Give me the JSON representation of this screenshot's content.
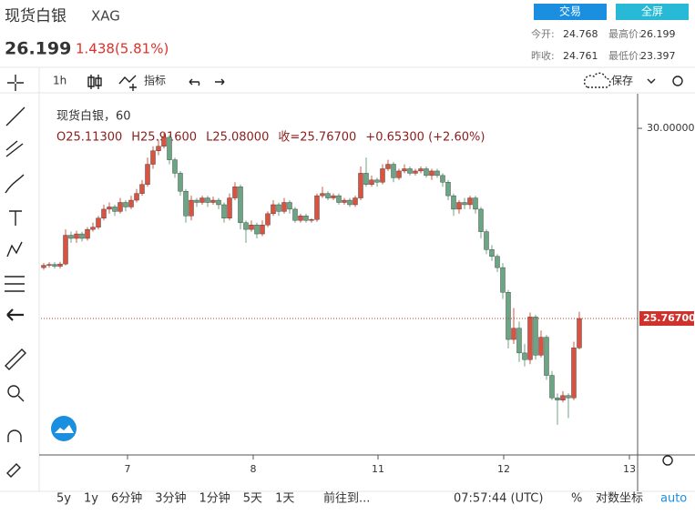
{
  "header": {
    "title": "现货白银",
    "symbol": "XAG",
    "price": "26.199",
    "change": "1.438(5.81%)",
    "buttons": [
      "交易",
      "全屏"
    ],
    "stats": [
      [
        "今开:",
        "24.768"
      ],
      [
        "最高价:",
        "26.199"
      ],
      [
        "昨收:",
        "24.761"
      ],
      [
        "最低价:",
        "23.397"
      ]
    ]
  },
  "toolbar": {
    "interval": "1h",
    "indicators": "指标",
    "save": "保存"
  },
  "bottom_bar": {
    "ranges": [
      "5y",
      "1y",
      "6分钟",
      "3分钟",
      "1分钟",
      "5天",
      "1天"
    ],
    "goto": "前往到...",
    "time": "07:57:44 (UTC)",
    "percent": "%",
    "log": "对数坐标",
    "auto": "auto"
  },
  "chart_data": {
    "type": "candlestick",
    "title": "现货白银，60",
    "info": [
      "O25.11300",
      "H25.91600",
      "L25.08000",
      "收=25.76700",
      "+0.65300 (+2.60%)"
    ],
    "up_color": "#d75442",
    "down_color": "#6ba583",
    "xlim": [
      -0.5,
      108.67
    ],
    "xticks": [
      {
        "value": 15.33,
        "label": "7"
      },
      {
        "value": 38.33,
        "label": "8"
      },
      {
        "value": 61.17,
        "label": "11"
      },
      {
        "value": 84.17,
        "label": "12"
      },
      {
        "value": 107.17,
        "label": "13"
      }
    ],
    "ylim": [
      22.79,
      30.73
    ],
    "yticks": [
      {
        "value": 30,
        "label": "30.00000"
      }
    ],
    "last_price": {
      "value": 25.767,
      "label": "25.76700"
    },
    "open": [
      26.9,
      26.95,
      26.97,
      26.93,
      26.98,
      27.62,
      27.55,
      27.65,
      27.55,
      27.75,
      27.8,
      28.0,
      28.2,
      28.25,
      28.15,
      28.35,
      28.25,
      28.4,
      28.55,
      28.75,
      29.2,
      29.5,
      29.6,
      29.8,
      29.3,
      29.0,
      28.6,
      28.05,
      28.4,
      28.35,
      28.45,
      28.35,
      28.4,
      28.3,
      28.0,
      28.45,
      28.7,
      27.9,
      27.75,
      27.85,
      27.65,
      27.85,
      28.1,
      28.3,
      28.15,
      28.35,
      28.2,
      27.95,
      28.05,
      27.95,
      27.97,
      28.5,
      28.55,
      28.45,
      28.5,
      28.35,
      28.4,
      28.3,
      28.45,
      29.0,
      28.75,
      28.85,
      28.8,
      29.1,
      29.2,
      28.9,
      29.05,
      29.1,
      29.0,
      29.05,
      29.1,
      28.95,
      29.05,
      28.95,
      28.8,
      28.5,
      28.2,
      28.35,
      28.3,
      28.45,
      28.2,
      27.7,
      27.3,
      27.15,
      26.9,
      26.35,
      25.3,
      25.55,
      25.0,
      24.85,
      25.8,
      24.95,
      25.35,
      24.5,
      24.0,
      23.95,
      24.05,
      24.0,
      25.113
    ],
    "high": [
      27.0,
      27.02,
      27.02,
      27.03,
      27.75,
      27.7,
      27.72,
      27.7,
      27.8,
      27.9,
      28.05,
      28.3,
      28.35,
      28.3,
      28.45,
      28.4,
      28.5,
      28.65,
      28.85,
      29.35,
      29.6,
      29.75,
      29.92,
      29.85,
      29.35,
      29.05,
      28.65,
      28.5,
      28.45,
      28.5,
      28.5,
      28.48,
      28.45,
      28.35,
      28.55,
      28.8,
      28.75,
      27.95,
      27.95,
      27.9,
      27.95,
      28.15,
      28.4,
      28.35,
      28.45,
      28.4,
      28.25,
      28.1,
      28.1,
      28.0,
      28.55,
      28.7,
      28.6,
      28.55,
      28.55,
      28.45,
      28.45,
      28.5,
      29.15,
      29.35,
      28.95,
      28.9,
      29.2,
      29.3,
      29.25,
      29.1,
      29.2,
      29.15,
      29.1,
      29.15,
      29.15,
      29.1,
      29.1,
      29.0,
      28.85,
      28.55,
      28.4,
      28.45,
      28.5,
      28.5,
      28.25,
      27.75,
      27.4,
      27.2,
      27.0,
      26.4,
      26.0,
      25.7,
      25.2,
      25.9,
      25.85,
      25.5,
      25.4,
      24.6,
      24.1,
      24.15,
      24.1,
      25.25,
      25.916
    ],
    "low": [
      26.85,
      26.9,
      26.88,
      26.88,
      26.95,
      27.45,
      27.45,
      27.48,
      27.5,
      27.7,
      27.75,
      27.95,
      28.1,
      28.05,
      28.1,
      28.15,
      28.2,
      28.35,
      28.5,
      28.7,
      29.1,
      29.4,
      29.55,
      29.2,
      28.9,
      28.5,
      27.9,
      27.95,
      28.25,
      28.3,
      28.25,
      28.3,
      28.2,
      27.9,
      27.95,
      28.4,
      27.75,
      27.45,
      27.7,
      27.55,
      27.6,
      27.8,
      28.05,
      28.05,
      28.1,
      28.1,
      27.9,
      27.9,
      27.9,
      27.9,
      27.92,
      28.45,
      28.4,
      28.4,
      28.3,
      28.3,
      28.25,
      28.25,
      28.4,
      28.7,
      28.7,
      28.7,
      28.75,
      29.05,
      28.8,
      28.85,
      29.0,
      28.95,
      28.95,
      29.0,
      28.9,
      28.85,
      28.9,
      28.7,
      28.4,
      28.05,
      28.1,
      28.2,
      28.2,
      28.1,
      27.55,
      27.2,
      27.05,
      26.8,
      26.2,
      25.1,
      25.2,
      24.8,
      24.7,
      24.75,
      24.85,
      24.9,
      24.4,
      23.95,
      23.4,
      23.9,
      23.55,
      23.95,
      25.08
    ],
    "close": [
      26.95,
      26.97,
      26.93,
      26.98,
      27.62,
      27.55,
      27.65,
      27.55,
      27.75,
      27.8,
      28.0,
      28.2,
      28.25,
      28.15,
      28.35,
      28.25,
      28.4,
      28.55,
      28.75,
      29.2,
      29.5,
      29.6,
      29.8,
      29.3,
      29.0,
      28.6,
      28.05,
      28.4,
      28.35,
      28.45,
      28.35,
      28.4,
      28.3,
      28.0,
      28.45,
      28.7,
      27.9,
      27.75,
      27.85,
      27.65,
      27.85,
      28.1,
      28.3,
      28.15,
      28.35,
      28.2,
      27.95,
      28.05,
      27.95,
      27.97,
      28.5,
      28.55,
      28.45,
      28.5,
      28.35,
      28.4,
      28.3,
      28.45,
      29.0,
      28.75,
      28.85,
      28.8,
      29.1,
      29.2,
      28.9,
      29.05,
      29.1,
      29.0,
      29.05,
      29.1,
      28.95,
      29.05,
      28.95,
      28.8,
      28.5,
      28.2,
      28.35,
      28.3,
      28.45,
      28.2,
      27.7,
      27.3,
      27.15,
      26.9,
      26.35,
      25.3,
      25.55,
      25.0,
      24.85,
      25.8,
      24.95,
      25.35,
      24.5,
      24.0,
      23.95,
      24.05,
      24.0,
      25.113,
      25.767
    ]
  }
}
